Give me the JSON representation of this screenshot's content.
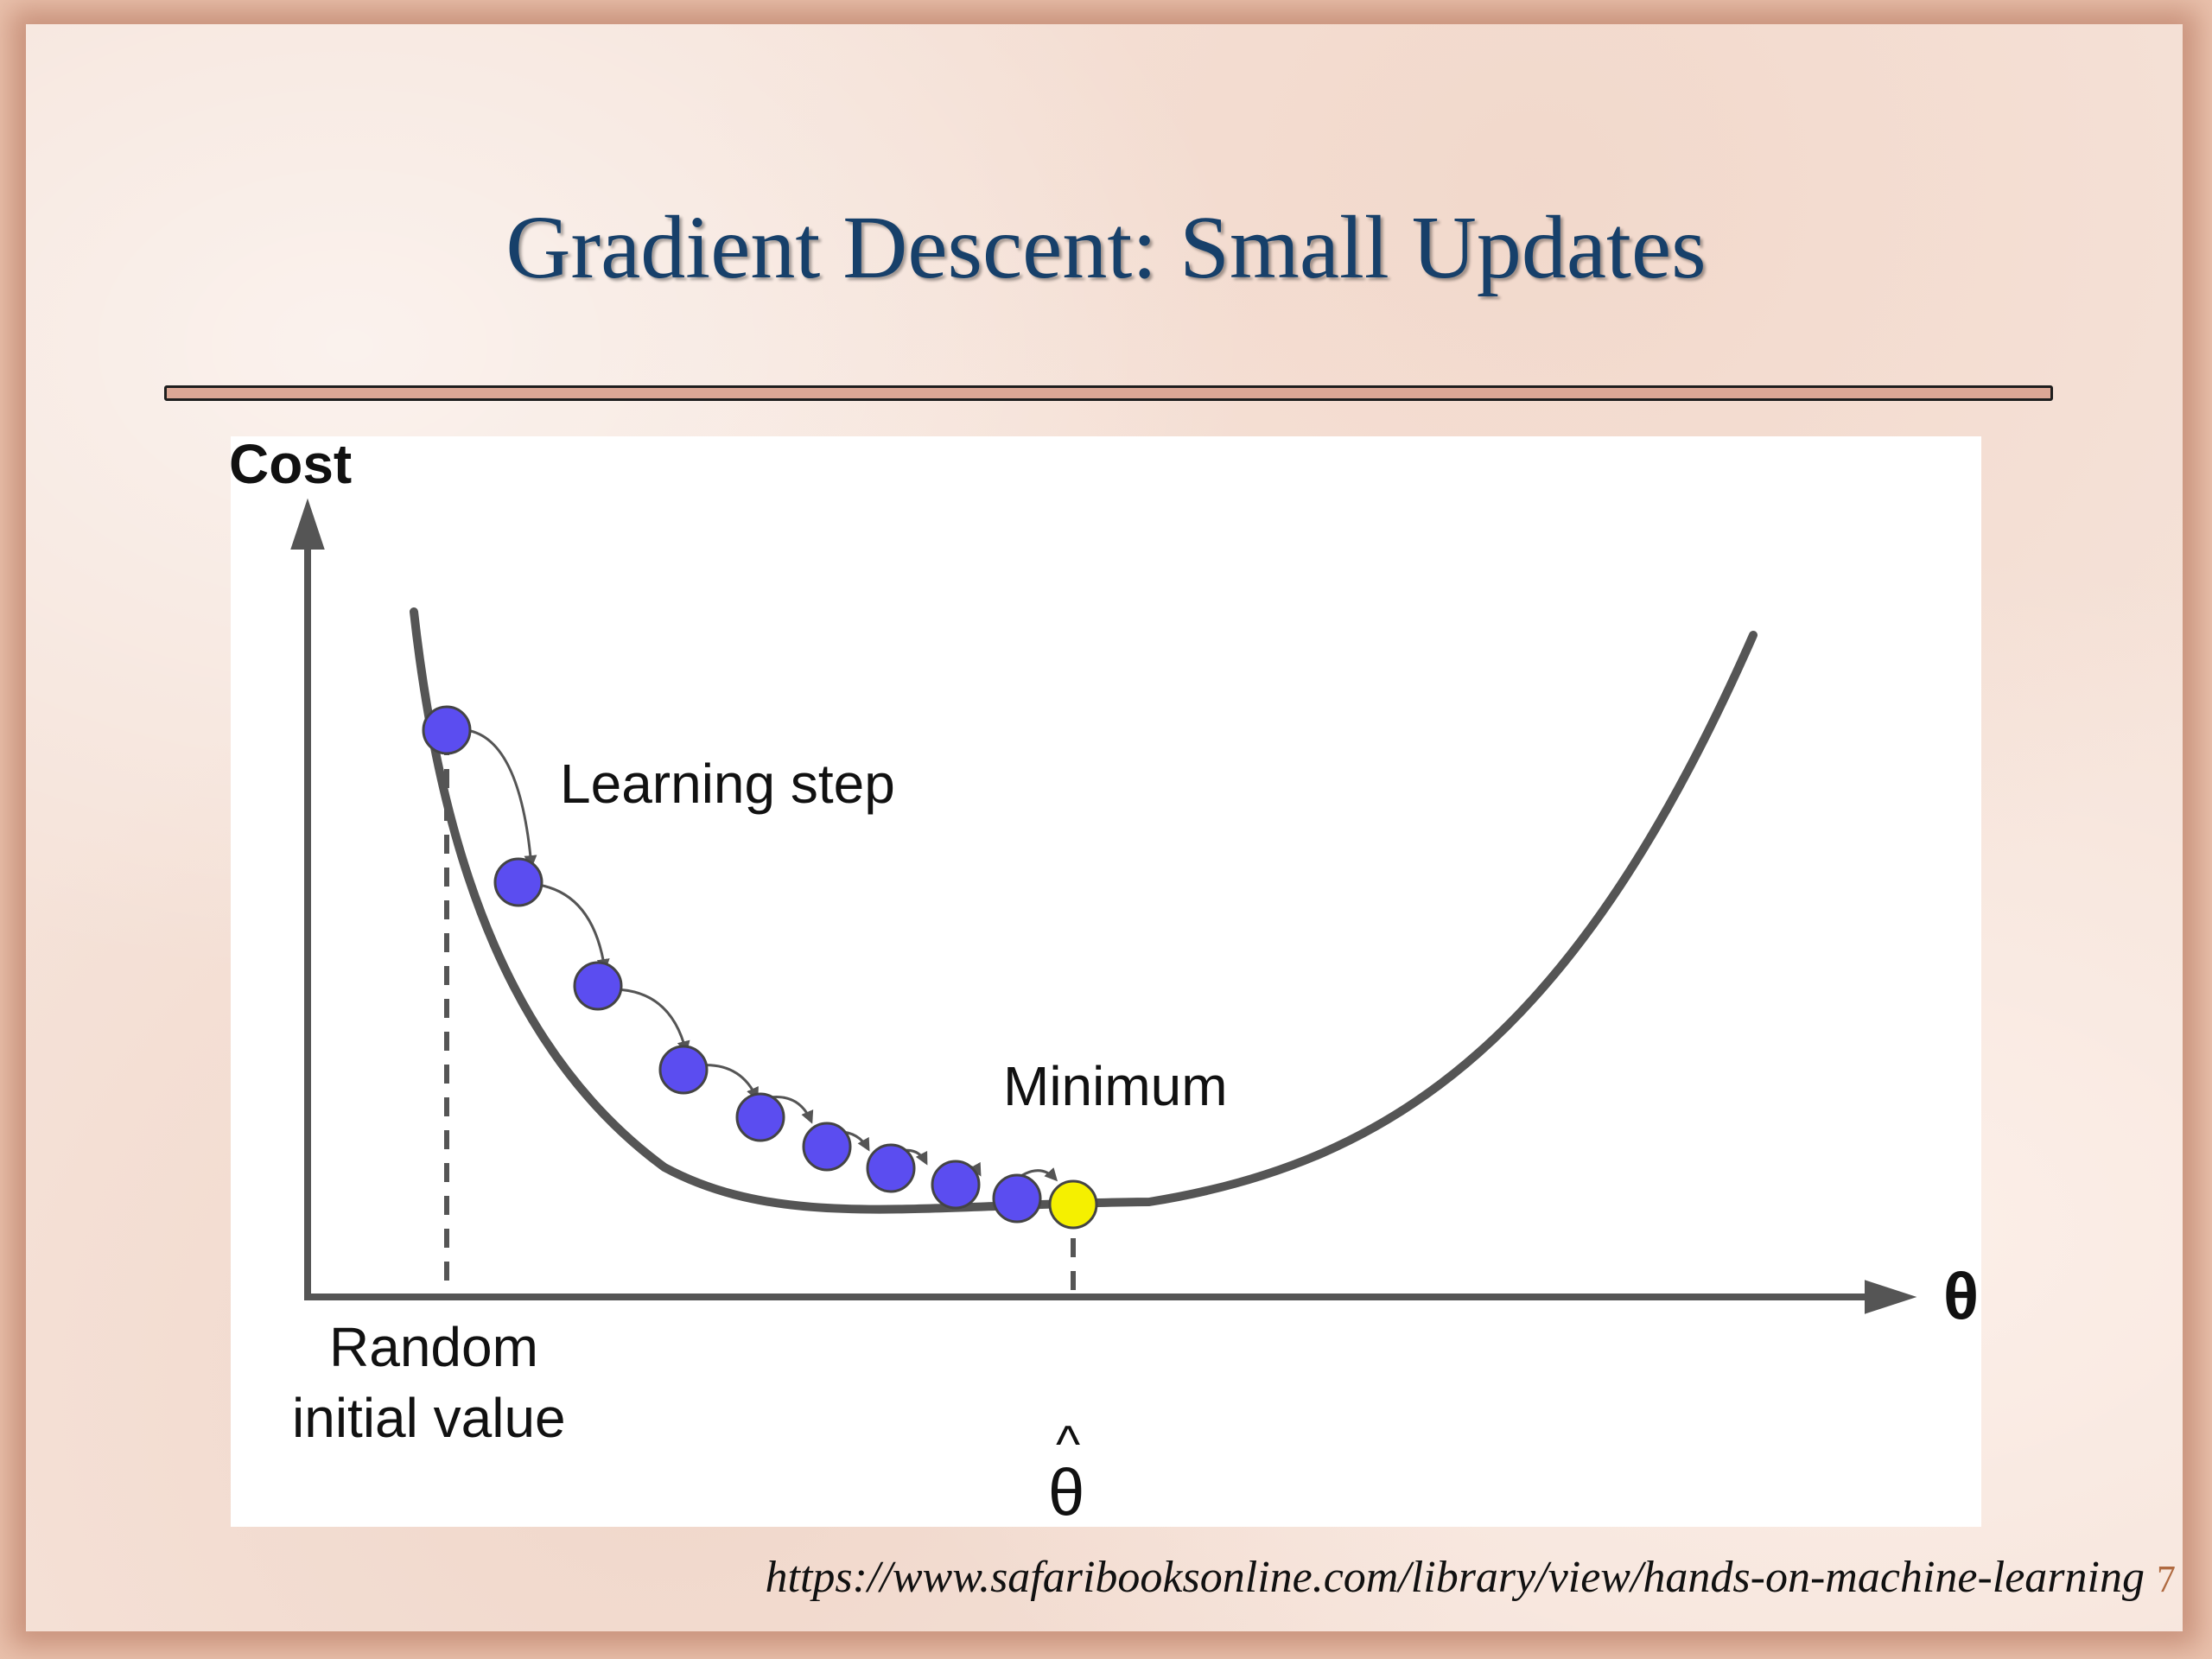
{
  "slide": {
    "title": "Gradient Descent: Small Updates",
    "source": "https://www.safaribooksonline.com/library/view/hands-on-machine-learning",
    "page_number": "7"
  },
  "diagram": {
    "y_axis_label": "Cost",
    "x_axis_label": "θ",
    "step_label": "Learning step",
    "minimum_label": "Minimum",
    "start_label_line1": "Random",
    "start_label_line2": "initial value",
    "optimum_label": "θ",
    "optimum_hat": "^",
    "colors": {
      "axis": "#555555",
      "curve": "#555555",
      "step_point": "#5b4df0",
      "minimum_point": "#f5f000",
      "background": "#ffffff",
      "title": "#17406a",
      "divider": "#dca795"
    },
    "step_points_count": 10
  }
}
